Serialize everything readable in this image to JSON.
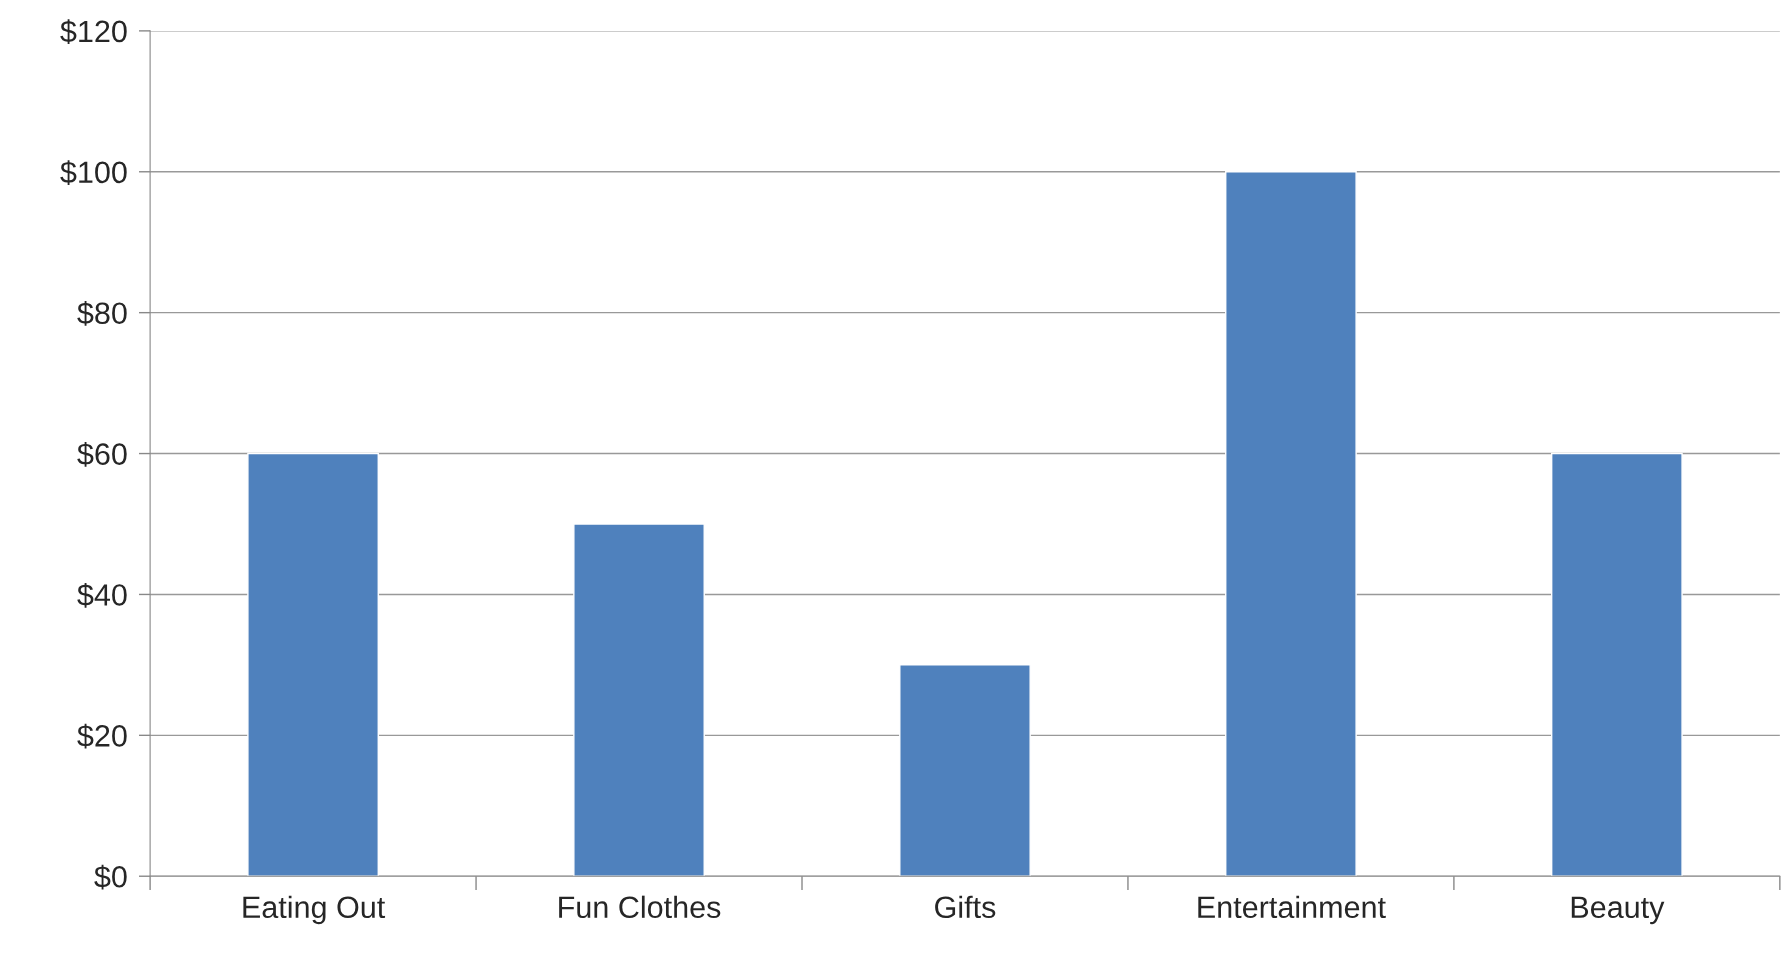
{
  "chart_data": {
    "type": "bar",
    "categories": [
      "Eating Out",
      "Fun Clothes",
      "Gifts",
      "Entertainment",
      "Beauty"
    ],
    "values": [
      60,
      50,
      30,
      100,
      60
    ],
    "color": "#4f81bd",
    "ylim": [
      0,
      120
    ],
    "yticks": [
      {
        "value": 0,
        "label": "$0"
      },
      {
        "value": 20,
        "label": "$20"
      },
      {
        "value": 40,
        "label": "$40"
      },
      {
        "value": 60,
        "label": "$60"
      },
      {
        "value": 80,
        "label": "$80"
      },
      {
        "value": 100,
        "label": "$100"
      },
      {
        "value": 120,
        "label": "$120"
      }
    ],
    "grid": "y",
    "legend": false
  }
}
